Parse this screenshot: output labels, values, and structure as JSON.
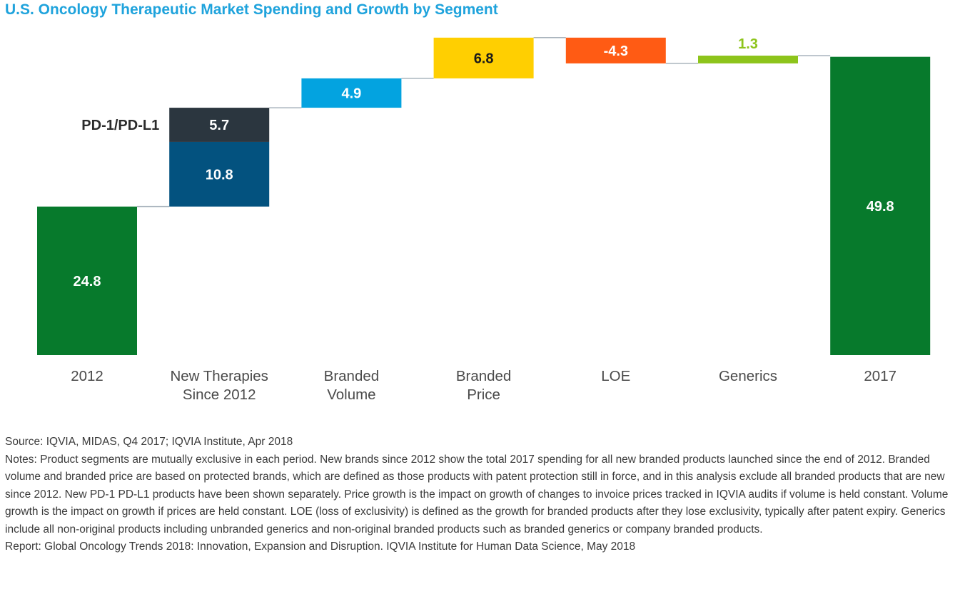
{
  "chart_data": {
    "type": "bar",
    "subtype": "waterfall",
    "title": "U.S. Oncology Therapeutic Market Spending and Growth by Segment",
    "categories": [
      "2012",
      "New Therapies Since 2012",
      "Branded Volume",
      "Branded Price",
      "LOE",
      "Generics",
      "2017"
    ],
    "category_lines": [
      [
        "2012"
      ],
      [
        "New Therapies",
        "Since 2012"
      ],
      [
        "Branded",
        "Volume"
      ],
      [
        "Branded",
        "Price"
      ],
      [
        "LOE"
      ],
      [
        "Generics"
      ],
      [
        "2017"
      ]
    ],
    "ylim": [
      0,
      64
    ],
    "grid": false,
    "legend": "none",
    "segments": [
      {
        "category": "2012",
        "start": 0,
        "value": 24.8,
        "label": "24.8",
        "color": "#077a2c",
        "label_color": "#ffffff",
        "label_position": "inside"
      },
      {
        "category": "New Therapies Since 2012",
        "start": 24.8,
        "value": 10.8,
        "label": "10.8",
        "color": "#03527f",
        "label_color": "#ffffff",
        "label_position": "inside"
      },
      {
        "category": "New Therapies Since 2012",
        "start": 35.6,
        "value": 5.7,
        "label": "5.7",
        "color": "#2b363f",
        "label_color": "#ffffff",
        "label_position": "inside",
        "annotation": "PD-1/PD-L1"
      },
      {
        "category": "Branded Volume",
        "start": 41.3,
        "value": 4.9,
        "label": "4.9",
        "color": "#03a3e0",
        "label_color": "#ffffff",
        "label_position": "inside"
      },
      {
        "category": "Branded Price",
        "start": 46.2,
        "value": 6.8,
        "label": "6.8",
        "color": "#ffcf01",
        "label_color": "#1a1a1a",
        "label_position": "inside"
      },
      {
        "category": "LOE",
        "start": 53.0,
        "value": -4.3,
        "label": "-4.3",
        "color": "#ff5b14",
        "label_color": "#ffffff",
        "label_position": "inside"
      },
      {
        "category": "Generics",
        "start": 48.7,
        "value": 1.3,
        "label": "1.3",
        "color": "#8dc41b",
        "label_color": "#8dc41b",
        "label_position": "above"
      },
      {
        "category": "2017",
        "start": 0,
        "value": 49.8,
        "label": "49.8",
        "color": "#077a2c",
        "label_color": "#ffffff",
        "label_position": "inside"
      }
    ]
  },
  "footer": {
    "source": "Source: IQVIA, MIDAS, Q4 2017; IQVIA Institute, Apr 2018",
    "notes": "Notes: Product segments are mutually exclusive in each period. New brands since 2012 show the total 2017 spending for all new branded products launched since the end of 2012. Branded volume and branded price are based on protected brands, which are defined as those products with patent protection still in force, and in this analysis exclude all branded products that are new since 2012. New PD-1 PD-L1 products have been shown separately. Price growth is the impact on growth of changes to invoice prices tracked in IQVIA audits if volume is held constant. Volume growth is the impact on growth if prices are held constant. LOE (loss of exclusivity) is defined as the growth for branded products after they lose exclusivity, typically after patent expiry. Generics include all non-original products including unbranded generics and non-original branded products such as branded generics or company branded products.",
    "report": "Report: Global Oncology Trends 2018: Innovation, Expansion and Disruption. IQVIA Institute for Human Data Science, May 2018"
  }
}
